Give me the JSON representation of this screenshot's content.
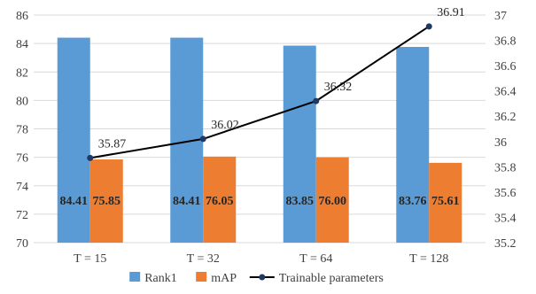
{
  "chart_data": {
    "type": "bar",
    "categories": [
      "T = 15",
      "T = 32",
      "T = 64",
      "T = 128"
    ],
    "series": [
      {
        "name": "Rank1",
        "type": "bar",
        "axis": "left",
        "color": "#5b9bd5",
        "values": [
          84.41,
          84.41,
          83.85,
          83.76
        ],
        "labels": [
          "84.41",
          "84.41",
          "83.85",
          "83.76"
        ]
      },
      {
        "name": "mAP",
        "type": "bar",
        "axis": "left",
        "color": "#ed7d31",
        "values": [
          75.85,
          76.05,
          76.0,
          75.61
        ],
        "labels": [
          "75.85",
          "76.05",
          "76.00",
          "75.61"
        ]
      },
      {
        "name": "Trainable parameters",
        "type": "line",
        "axis": "right",
        "color": "#000000",
        "marker_color": "#1f3864",
        "values": [
          35.87,
          36.02,
          36.32,
          36.91
        ],
        "labels": [
          "35.87",
          "36.02",
          "36.32",
          "36.91"
        ]
      }
    ],
    "y_left": {
      "min": 70,
      "max": 86,
      "step": 2,
      "ticks": [
        "70",
        "72",
        "74",
        "76",
        "78",
        "80",
        "82",
        "84",
        "86"
      ]
    },
    "y_right": {
      "min": 35.2,
      "max": 37,
      "step": 0.2,
      "ticks": [
        "35.2",
        "35.4",
        "35.6",
        "35.8",
        "36",
        "36.2",
        "36.4",
        "36.6",
        "36.8",
        "37"
      ]
    },
    "grid": true,
    "legend_position": "bottom"
  }
}
